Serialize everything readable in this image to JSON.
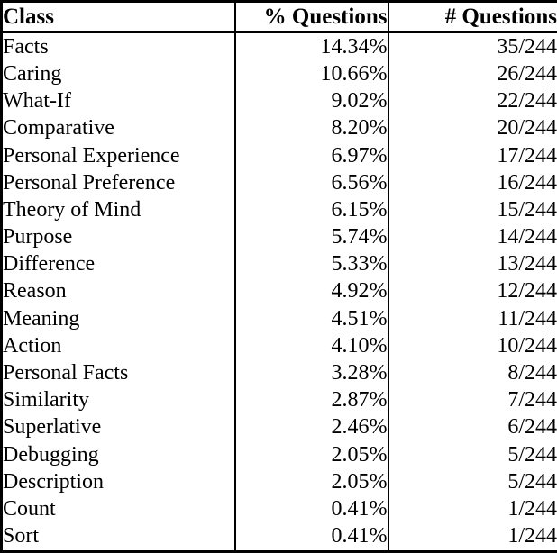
{
  "table": {
    "headers": [
      "Class",
      "% Questions",
      "# Questions"
    ],
    "rows": [
      [
        "Facts",
        "14.34%",
        "35/244"
      ],
      [
        "Caring",
        "10.66%",
        "26/244"
      ],
      [
        "What-If",
        "9.02%",
        "22/244"
      ],
      [
        "Comparative",
        "8.20%",
        "20/244"
      ],
      [
        "Personal Experience",
        "6.97%",
        "17/244"
      ],
      [
        "Personal Preference",
        "6.56%",
        "16/244"
      ],
      [
        "Theory of Mind",
        "6.15%",
        "15/244"
      ],
      [
        "Purpose",
        "5.74%",
        "14/244"
      ],
      [
        "Difference",
        "5.33%",
        "13/244"
      ],
      [
        "Reason",
        "4.92%",
        "12/244"
      ],
      [
        "Meaning",
        "4.51%",
        "11/244"
      ],
      [
        "Action",
        "4.10%",
        "10/244"
      ],
      [
        "Personal Facts",
        "3.28%",
        "8/244"
      ],
      [
        "Similarity",
        "2.87%",
        "7/244"
      ],
      [
        "Superlative",
        "2.46%",
        "6/244"
      ],
      [
        "Debugging",
        "2.05%",
        "5/244"
      ],
      [
        "Description",
        "2.05%",
        "5/244"
      ],
      [
        "Count",
        "0.41%",
        "1/244"
      ],
      [
        "Sort",
        "0.41%",
        "1/244"
      ]
    ]
  },
  "chart_data": {
    "type": "table",
    "columns": [
      "Class",
      "% Questions",
      "# Questions"
    ],
    "categories": [
      "Facts",
      "Caring",
      "What-If",
      "Comparative",
      "Personal Experience",
      "Personal Preference",
      "Theory of Mind",
      "Purpose",
      "Difference",
      "Reason",
      "Meaning",
      "Action",
      "Personal Facts",
      "Similarity",
      "Superlative",
      "Debugging",
      "Description",
      "Count",
      "Sort"
    ],
    "series": [
      {
        "name": "% Questions",
        "values": [
          14.34,
          10.66,
          9.02,
          8.2,
          6.97,
          6.56,
          6.15,
          5.74,
          5.33,
          4.92,
          4.51,
          4.1,
          3.28,
          2.87,
          2.46,
          2.05,
          2.05,
          0.41,
          0.41
        ]
      },
      {
        "name": "# Questions (of 244)",
        "values": [
          35,
          26,
          22,
          20,
          17,
          16,
          15,
          14,
          13,
          12,
          11,
          10,
          8,
          7,
          6,
          5,
          5,
          1,
          1
        ]
      }
    ]
  },
  "colors": {
    "text": "#000000",
    "background": "#ffffff",
    "border": "#000000"
  }
}
